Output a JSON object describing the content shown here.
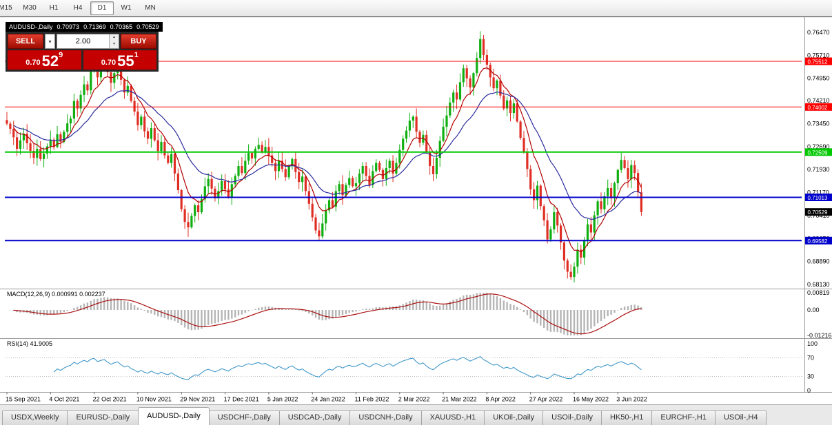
{
  "toolbar": {
    "timeframes": [
      {
        "label": "M15",
        "active": false
      },
      {
        "label": "M30",
        "active": false
      },
      {
        "label": "H1",
        "active": false
      },
      {
        "label": "H4",
        "active": false
      },
      {
        "label": "D1",
        "active": true
      },
      {
        "label": "W1",
        "active": false
      },
      {
        "label": "MN",
        "active": false
      }
    ]
  },
  "chart": {
    "ohlc": {
      "symbol": "AUDUSD-,Daily",
      "open": "0.70973",
      "high": "0.71369",
      "low": "0.70365",
      "close": "0.70529"
    },
    "trade_panel": {
      "sell_label": "SELL",
      "buy_label": "BUY",
      "volume": "2.00",
      "bid": {
        "prefix": "0.70",
        "big": "52",
        "sup": "9"
      },
      "ask": {
        "prefix": "0.70",
        "big": "55",
        "sup": "1"
      }
    }
  },
  "chart_data": {
    "type": "candlestick",
    "title": "AUDUSD-,Daily",
    "price_axis": [
      "0.76470",
      "0.75710",
      "0.74950",
      "0.74210",
      "0.73450",
      "0.72690",
      "0.71930",
      "0.71170",
      "0.70410",
      "0.69650",
      "0.68890",
      "0.68130"
    ],
    "current_price": "0.70529",
    "levels": [
      {
        "price": 0.75512,
        "label": "0.75512",
        "color": "#ff0000",
        "width": 1
      },
      {
        "price": 0.74002,
        "label": "0.74002",
        "color": "#ff0000",
        "width": 1
      },
      {
        "price": 0.72509,
        "label": "0.72509",
        "color": "#00c800",
        "width": 2
      },
      {
        "price": 0.71013,
        "label": "0.71013",
        "color": "#0000cc",
        "width": 2
      },
      {
        "price": 0.69582,
        "label": "0.69582",
        "color": "#0000cc",
        "width": 2
      }
    ],
    "colors": {
      "bull": "#0faf0f",
      "bear": "#df2e23",
      "ma_fast": "#b30000",
      "ma_slow": "#2b2b9e",
      "macd_hist": "#b5b5b5",
      "macd_signal": "#aa1111",
      "rsi": "#3f97c9"
    },
    "closes": [
      0.7345,
      0.7328,
      0.73,
      0.7262,
      0.729,
      0.7312,
      0.728,
      0.7255,
      0.7232,
      0.7262,
      0.7228,
      0.7246,
      0.727,
      0.7292,
      0.7268,
      0.731,
      0.7285,
      0.7318,
      0.7346,
      0.7362,
      0.742,
      0.7395,
      0.744,
      0.7475,
      0.7455,
      0.752,
      0.7545,
      0.7498,
      0.753,
      0.7552,
      0.7515,
      0.748,
      0.7512,
      0.7535,
      0.749,
      0.7448,
      0.747,
      0.742,
      0.7385,
      0.734,
      0.7368,
      0.732,
      0.7295,
      0.733,
      0.729,
      0.7255,
      0.7285,
      0.724,
      0.7215,
      0.7245,
      0.718,
      0.7125,
      0.7062,
      0.702,
      0.7002,
      0.704,
      0.7075,
      0.7052,
      0.7095,
      0.7138,
      0.7162,
      0.713,
      0.7098,
      0.7122,
      0.7155,
      0.7128,
      0.7102,
      0.7145,
      0.7172,
      0.7205,
      0.7182,
      0.7222,
      0.7248,
      0.723,
      0.7262,
      0.7275,
      0.7252,
      0.7268,
      0.724,
      0.7215,
      0.7188,
      0.7222,
      0.7195,
      0.7168,
      0.7205,
      0.7228,
      0.7185,
      0.7152,
      0.717,
      0.7122,
      0.708,
      0.7035,
      0.6992,
      0.6972,
      0.7015,
      0.7058,
      0.7092,
      0.707,
      0.7122,
      0.7145,
      0.7108,
      0.7142,
      0.7165,
      0.7138,
      0.7148,
      0.718,
      0.7205,
      0.7172,
      0.7142,
      0.7188,
      0.7215,
      0.7192,
      0.7162,
      0.7198,
      0.7222,
      0.718,
      0.7215,
      0.7258,
      0.7295,
      0.7322,
      0.7355,
      0.7368,
      0.7318,
      0.7282,
      0.7308,
      0.7252,
      0.7205,
      0.7178,
      0.7232,
      0.7288,
      0.7335,
      0.7372,
      0.7415,
      0.7448,
      0.7425,
      0.7482,
      0.7528,
      0.7495,
      0.7465,
      0.7512,
      0.7562,
      0.7625,
      0.7572,
      0.754,
      0.7498,
      0.7462,
      0.7488,
      0.7438,
      0.7395,
      0.7422,
      0.738,
      0.7412,
      0.7352,
      0.7298,
      0.7252,
      0.7195,
      0.7128,
      0.7092,
      0.714,
      0.7072,
      0.7025,
      0.6962,
      0.6995,
      0.7052,
      0.7008,
      0.6952,
      0.6892,
      0.6855,
      0.6838,
      0.6872,
      0.6928,
      0.6902,
      0.6958,
      0.7012,
      0.6985,
      0.7042,
      0.7088,
      0.7062,
      0.7105,
      0.7132,
      0.7098,
      0.7148,
      0.7192,
      0.7225,
      0.7198,
      0.7162,
      0.7208,
      0.7182,
      0.7118,
      0.70529
    ],
    "date_ticks": [
      {
        "label": "15 Sep 2021",
        "index": 0
      },
      {
        "label": "4 Oct 2021",
        "index": 13
      },
      {
        "label": "22 Oct 2021",
        "index": 26
      },
      {
        "label": "10 Nov 2021",
        "index": 39
      },
      {
        "label": "29 Nov 2021",
        "index": 52
      },
      {
        "label": "17 Dec 2021",
        "index": 65
      },
      {
        "label": "5 Jan 2022",
        "index": 78
      },
      {
        "label": "24 Jan 2022",
        "index": 91
      },
      {
        "label": "11 Feb 2022",
        "index": 104
      },
      {
        "label": "2 Mar 2022",
        "index": 117
      },
      {
        "label": "21 Mar 2022",
        "index": 130
      },
      {
        "label": "8 Apr 2022",
        "index": 143
      },
      {
        "label": "27 Apr 2022",
        "index": 156
      },
      {
        "label": "16 May 2022",
        "index": 169
      },
      {
        "label": "3 Jun 2022",
        "index": 182
      }
    ],
    "macd": {
      "label": "MACD(12,26,9)",
      "values": "0.000991 0.002237",
      "axis": [
        {
          "value": 0.00819,
          "label": "0.00819"
        },
        {
          "value": 0,
          "label": "0.00"
        },
        {
          "value": -0.01216,
          "label": "-0.01216"
        }
      ]
    },
    "rsi": {
      "label": "RSI(14)",
      "value": "41.9005",
      "axis": [
        100,
        70,
        30,
        0
      ],
      "levels": [
        70,
        30
      ]
    }
  },
  "tabs": [
    {
      "label": "USDX,Weekly",
      "active": false
    },
    {
      "label": "EURUSD-,Daily",
      "active": false
    },
    {
      "label": "AUDUSD-,Daily",
      "active": true
    },
    {
      "label": "USDCHF-,Daily",
      "active": false
    },
    {
      "label": "USDCAD-,Daily",
      "active": false
    },
    {
      "label": "USDCNH-,Daily",
      "active": false
    },
    {
      "label": "XAUUSD-,H1",
      "active": false
    },
    {
      "label": "UKOil-,Daily",
      "active": false
    },
    {
      "label": "USOil-,Daily",
      "active": false
    },
    {
      "label": "HK50-,H1",
      "active": false
    },
    {
      "label": "EURCHF-,H1",
      "active": false
    },
    {
      "label": "USOil-,H4",
      "active": false
    }
  ]
}
